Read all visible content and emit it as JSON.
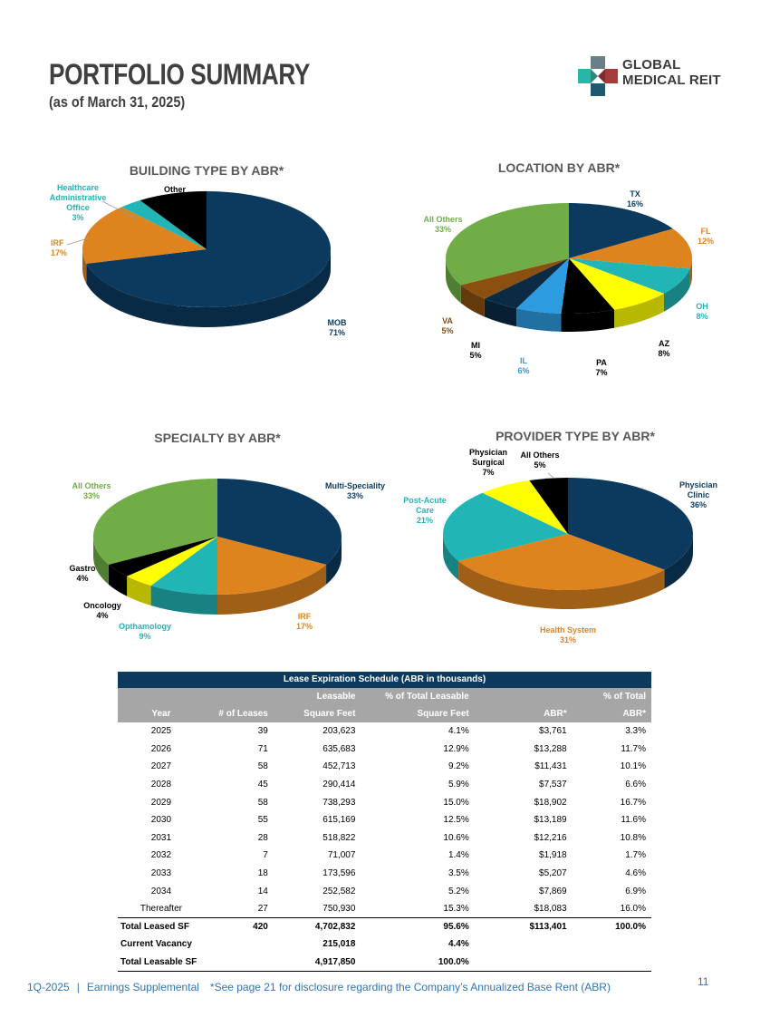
{
  "header": {
    "title": "PORTFOLIO SUMMARY",
    "subtitle": "(as of March 31, 2025)",
    "logo_line1": "GLOBAL",
    "logo_line2": "MEDICAL REIT"
  },
  "colors": {
    "navy": "#0b3a5e",
    "orange": "#de841f",
    "teal": "#22b5b5",
    "black": "#000000",
    "yellow": "#ffff00",
    "blue": "#2c9be0",
    "brown": "#8b4f10",
    "green": "#70ad47",
    "header_gray": "#a6a6a6",
    "link_blue": "#2e75b6"
  },
  "chart_data": [
    {
      "type": "pie",
      "title": "BUILDING TYPE BY ABR*",
      "slices": [
        {
          "name": "MOB",
          "value": 71,
          "label": "71%",
          "color": "#0b3a5e"
        },
        {
          "name": "IRF",
          "value": 17,
          "label": "17%",
          "color": "#de841f"
        },
        {
          "name": "Healthcare Administrative Office",
          "value": 3,
          "label": "3%",
          "color": "#22b5b5"
        },
        {
          "name": "Other",
          "value": 9,
          "label": "9%",
          "color": "#000000"
        }
      ]
    },
    {
      "type": "pie",
      "title": "LOCATION  BY ABR*",
      "slices": [
        {
          "name": "TX",
          "value": 16,
          "label": "16%",
          "color": "#0b3a5e"
        },
        {
          "name": "FL",
          "value": 12,
          "label": "12%",
          "color": "#de841f"
        },
        {
          "name": "OH",
          "value": 8,
          "label": "8%",
          "color": "#22b5b5"
        },
        {
          "name": "AZ",
          "value": 8,
          "label": "8%",
          "color": "#ffff00"
        },
        {
          "name": "PA",
          "value": 7,
          "label": "7%",
          "color": "#000000"
        },
        {
          "name": "IL",
          "value": 6,
          "label": "6%",
          "color": "#2c9be0"
        },
        {
          "name": "MI",
          "value": 5,
          "label": "5%",
          "color": "#0b2a44"
        },
        {
          "name": "VA",
          "value": 5,
          "label": "5%",
          "color": "#8b4f10"
        },
        {
          "name": "All Others",
          "value": 33,
          "label": "33%",
          "color": "#70ad47"
        }
      ]
    },
    {
      "type": "pie",
      "title": "SPECIALTY BY ABR*",
      "slices": [
        {
          "name": "Multi-Speciality",
          "value": 33,
          "label": "33%",
          "color": "#0b3a5e"
        },
        {
          "name": "IRF",
          "value": 17,
          "label": "17%",
          "color": "#de841f"
        },
        {
          "name": "Opthamology",
          "value": 9,
          "label": "9%",
          "color": "#22b5b5"
        },
        {
          "name": "Oncology",
          "value": 4,
          "label": "4%",
          "color": "#ffff00"
        },
        {
          "name": "Gastro",
          "value": 4,
          "label": "4%",
          "color": "#000000"
        },
        {
          "name": "All Others",
          "value": 33,
          "label": "33%",
          "color": "#70ad47"
        }
      ]
    },
    {
      "type": "pie",
      "title": "PROVIDER TYPE BY ABR*",
      "slices": [
        {
          "name": "Physician Clinic",
          "value": 36,
          "label": "36%",
          "color": "#0b3a5e"
        },
        {
          "name": "Health System",
          "value": 31,
          "label": "31%",
          "color": "#de841f"
        },
        {
          "name": "Post-Acute Care",
          "value": 21,
          "label": "21%",
          "color": "#22b5b5"
        },
        {
          "name": "Physician Surgical",
          "value": 7,
          "label": "7%",
          "color": "#ffff00"
        },
        {
          "name": "All Others",
          "value": 5,
          "label": "5%",
          "color": "#000000"
        }
      ]
    }
  ],
  "lease": {
    "title": "Lease Expiration Schedule (ABR in thousands)",
    "header_row1": [
      "",
      "",
      "Leasable",
      "% of Total Leasable",
      "",
      "% of Total"
    ],
    "header_row2": [
      "Year",
      "# of Leases",
      "Square Feet",
      "Square Feet",
      "ABR*",
      "ABR*"
    ],
    "rows": [
      [
        "2025",
        "39",
        "203,623",
        "4.1%",
        "$3,761",
        "3.3%"
      ],
      [
        "2026",
        "71",
        "635,683",
        "12.9%",
        "$13,288",
        "11.7%"
      ],
      [
        "2027",
        "58",
        "452,713",
        "9.2%",
        "$11,431",
        "10.1%"
      ],
      [
        "2028",
        "45",
        "290,414",
        "5.9%",
        "$7,537",
        "6.6%"
      ],
      [
        "2029",
        "58",
        "738,293",
        "15.0%",
        "$18,902",
        "16.7%"
      ],
      [
        "2030",
        "55",
        "615,169",
        "12.5%",
        "$13,189",
        "11.6%"
      ],
      [
        "2031",
        "28",
        "518,822",
        "10.6%",
        "$12,216",
        "10.8%"
      ],
      [
        "2032",
        "7",
        "71,007",
        "1.4%",
        "$1,918",
        "1.7%"
      ],
      [
        "2033",
        "18",
        "173,596",
        "3.5%",
        "$5,207",
        "4.6%"
      ],
      [
        "2034",
        "14",
        "252,582",
        "5.2%",
        "$7,869",
        "6.9%"
      ],
      [
        "Thereafter",
        "27",
        "750,930",
        "15.3%",
        "$18,083",
        "16.0%"
      ]
    ],
    "totals": [
      [
        "Total Leased SF",
        "420",
        "4,702,832",
        "95.6%",
        "$113,401",
        "100.0%"
      ],
      [
        "Current Vacancy",
        "",
        "215,018",
        "4.4%",
        "",
        ""
      ],
      [
        "Total Leasable SF",
        "",
        "4,917,850",
        "100.0%",
        "",
        ""
      ]
    ]
  },
  "footer": {
    "left": "1Q-2025",
    "sep": "|",
    "doc": "Earnings Supplemental",
    "note": "*See page 21 for disclosure regarding the Company’s Annualized Base Rent (ABR)",
    "page": "11"
  }
}
